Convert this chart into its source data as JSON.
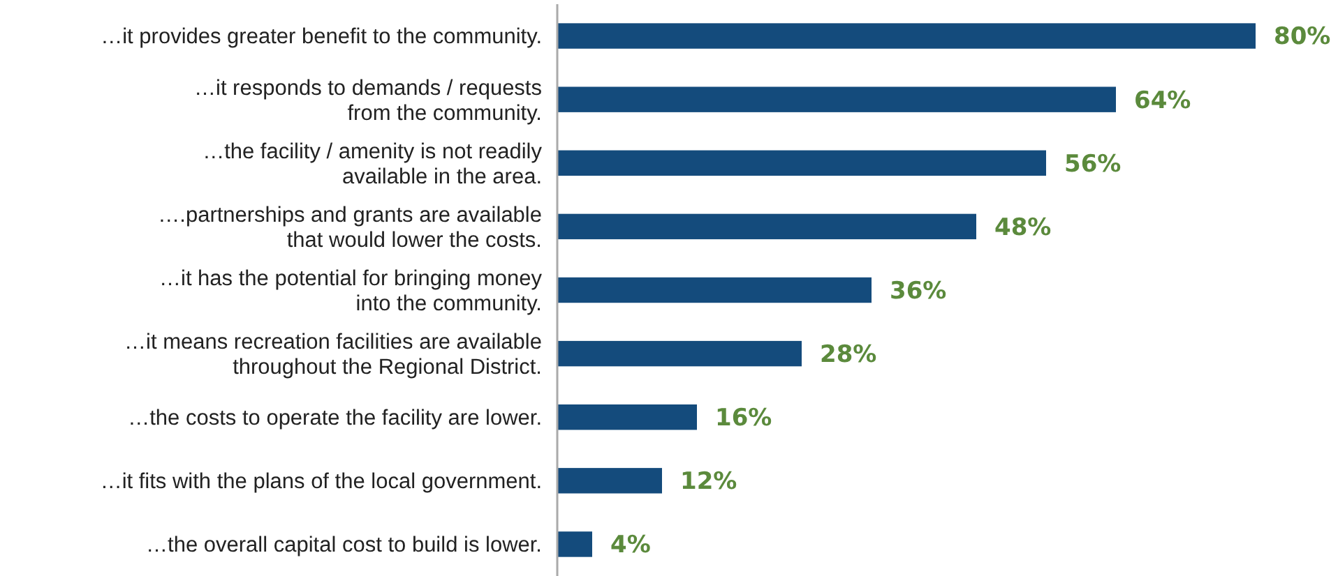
{
  "chart_data": {
    "type": "bar",
    "orientation": "horizontal",
    "categories": [
      "…it provides greater benefit to the community.",
      "…it responds to demands / requests\nfrom the community.",
      "…the facility / amenity is not readily\navailable in the area.",
      "….partnerships and grants are available\nthat would lower the costs.",
      "…it has the potential for bringing money\ninto the community.",
      "…it means recreation facilities are available\nthroughout the Regional District.",
      "…the costs to operate the facility are lower.",
      "…it fits with the plans of the local government.",
      "…the overall capital cost to build is lower."
    ],
    "values": [
      80,
      64,
      56,
      48,
      36,
      28,
      16,
      12,
      4
    ],
    "value_labels": [
      "80%",
      "64%",
      "56%",
      "48%",
      "36%",
      "28%",
      "16%",
      "12%",
      "4%"
    ],
    "color": "#144b7c"
  }
}
